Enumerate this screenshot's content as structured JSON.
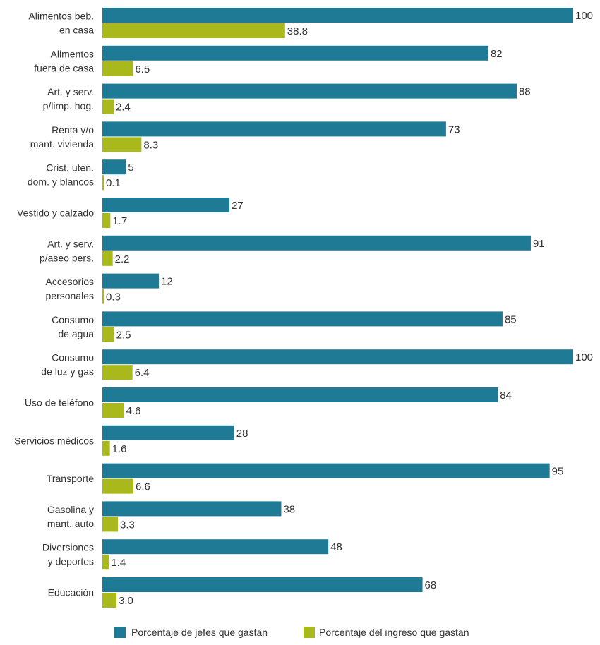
{
  "chart_data": {
    "type": "bar",
    "orientation": "horizontal",
    "categories": [
      [
        "Alimentos beb.",
        "en casa"
      ],
      [
        "Alimentos",
        "fuera de casa"
      ],
      [
        "Art. y serv.",
        "p/limp. hog."
      ],
      [
        "Renta y/o",
        "mant. vivienda"
      ],
      [
        "Crist. uten.",
        "dom. y blancos"
      ],
      [
        "Vestido y calzado"
      ],
      [
        "Art. y serv.",
        "p/aseo pers."
      ],
      [
        "Accesorios",
        "personales"
      ],
      [
        "Consumo",
        "de agua"
      ],
      [
        "Consumo",
        "de luz y gas"
      ],
      [
        "Uso de teléfono"
      ],
      [
        "Servicios médicos"
      ],
      [
        "Transporte"
      ],
      [
        "Gasolina y",
        "mant. auto"
      ],
      [
        "Diversiones",
        "y deportes"
      ],
      [
        "Educación"
      ]
    ],
    "series": [
      {
        "name": "Porcentaje de jefes que gastan",
        "color": "#1f7a96",
        "values": [
          100,
          82,
          88,
          73,
          5,
          27,
          91,
          12,
          85,
          100,
          84,
          28,
          95,
          38,
          48,
          68
        ],
        "labels": [
          "100",
          "82",
          "88",
          "73",
          "5",
          "27",
          "91",
          "12",
          "85",
          "100",
          "84",
          "28",
          "95",
          "38",
          "48",
          "68"
        ]
      },
      {
        "name": "Porcentaje del ingreso que gastan",
        "color": "#a9b91b",
        "values": [
          38.8,
          6.5,
          2.4,
          8.3,
          0.1,
          1.7,
          2.2,
          0.3,
          2.5,
          6.4,
          4.6,
          1.6,
          6.6,
          3.3,
          1.4,
          3.0
        ],
        "labels": [
          "38.8",
          "6.5",
          "2.4",
          "8.3",
          "0.1",
          "1.7",
          "2.2",
          "0.3",
          "2.5",
          "6.4",
          "4.6",
          "1.6",
          "6.6",
          "3.3",
          "1.4",
          "3.0"
        ]
      }
    ],
    "xlim": [
      0,
      100
    ],
    "grid": false,
    "legend_position": "bottom"
  }
}
